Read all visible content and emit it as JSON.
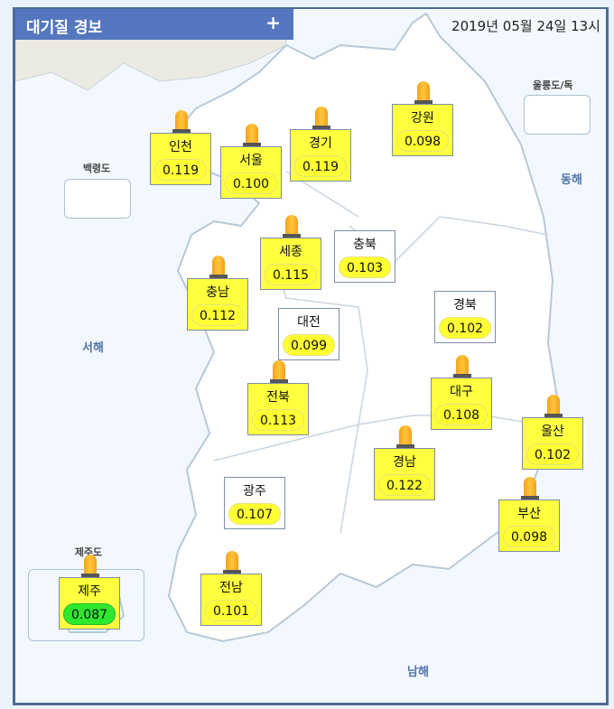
{
  "header": {
    "title": "대기질 경보",
    "expand_label": "+",
    "datetime": "2019년 05월 24일 13시"
  },
  "colors": {
    "header": "#5577bf",
    "alert_box": "#ffff40",
    "good_pill": "#2de82d",
    "normal_pill": "#ffff33"
  },
  "insets": {
    "baengnyeong": "백령도",
    "ulleung": "울릉도/독도",
    "jeju": "제주도"
  },
  "seas": {
    "east": "동해",
    "west": "서해",
    "south": "남해"
  },
  "regions": [
    {
      "name": "인천",
      "value": "0.119",
      "alert": true
    },
    {
      "name": "서울",
      "value": "0.100",
      "alert": true
    },
    {
      "name": "경기",
      "value": "0.119",
      "alert": true
    },
    {
      "name": "강원",
      "value": "0.098",
      "alert": true
    },
    {
      "name": "세종",
      "value": "0.115",
      "alert": true
    },
    {
      "name": "충북",
      "value": "0.103",
      "alert": false
    },
    {
      "name": "충남",
      "value": "0.112",
      "alert": true
    },
    {
      "name": "대전",
      "value": "0.099",
      "alert": false
    },
    {
      "name": "경북",
      "value": "0.102",
      "alert": false
    },
    {
      "name": "전북",
      "value": "0.113",
      "alert": true
    },
    {
      "name": "대구",
      "value": "0.108",
      "alert": true
    },
    {
      "name": "울산",
      "value": "0.102",
      "alert": true
    },
    {
      "name": "경남",
      "value": "0.122",
      "alert": true
    },
    {
      "name": "광주",
      "value": "0.107",
      "alert": false
    },
    {
      "name": "부산",
      "value": "0.098",
      "alert": true
    },
    {
      "name": "제주",
      "value": "0.087",
      "alert": true,
      "level": "good"
    },
    {
      "name": "전남",
      "value": "0.101",
      "alert": true
    }
  ]
}
